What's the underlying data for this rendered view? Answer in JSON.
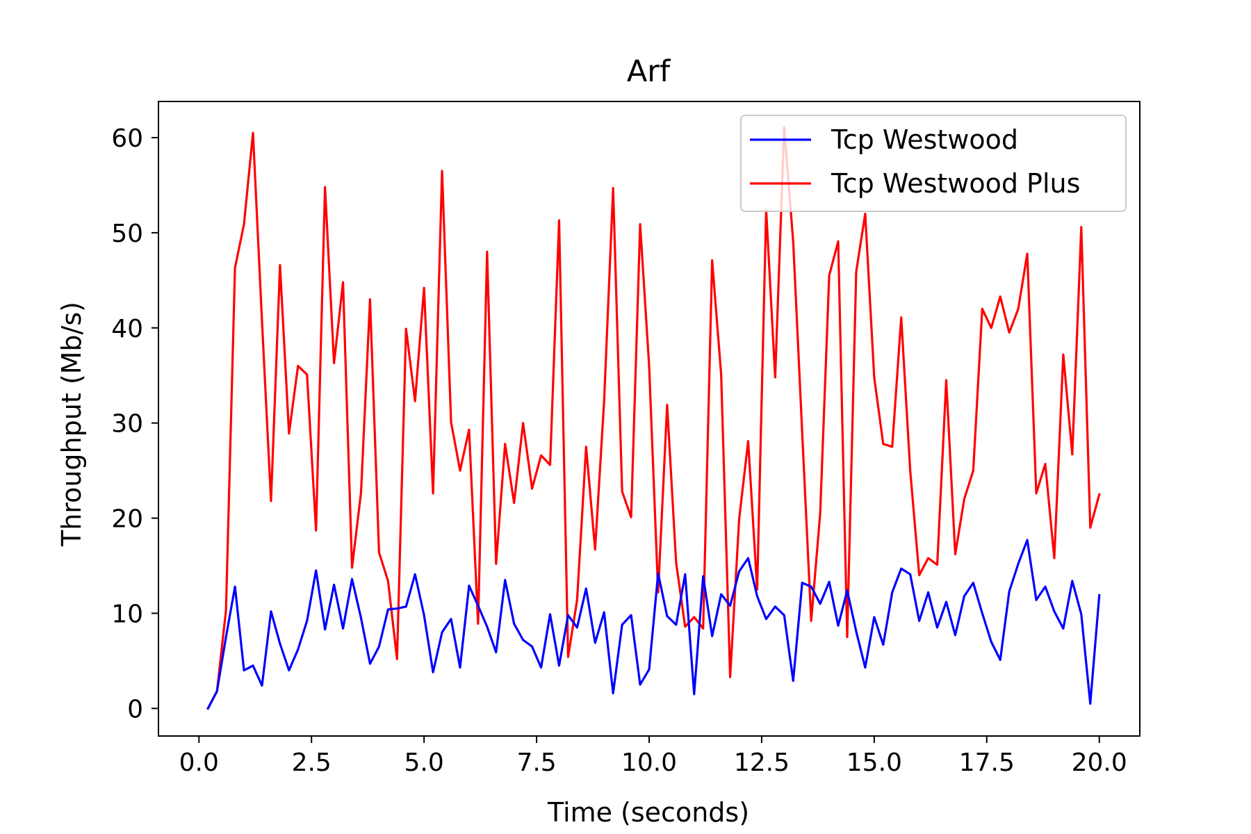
{
  "chart_data": {
    "type": "line",
    "title": "Arf",
    "xlabel": "Time (seconds)",
    "ylabel": "Throughput (Mb/s)",
    "xlim": [
      -0.9,
      20.9
    ],
    "ylim": [
      -2.9,
      63.8
    ],
    "xticks": [
      0.0,
      2.5,
      5.0,
      7.5,
      10.0,
      12.5,
      15.0,
      17.5,
      20.0
    ],
    "xtick_labels": [
      "0.0",
      "2.5",
      "5.0",
      "7.5",
      "10.0",
      "12.5",
      "15.0",
      "17.5",
      "20.0"
    ],
    "yticks": [
      0,
      10,
      20,
      30,
      40,
      50,
      60
    ],
    "ytick_labels": [
      "0",
      "10",
      "20",
      "30",
      "40",
      "50",
      "60"
    ],
    "grid": false,
    "legend_position": "top-right",
    "x": [
      0.2,
      0.4,
      0.6,
      0.8,
      1.0,
      1.2,
      1.4,
      1.6,
      1.8,
      2.0,
      2.2,
      2.4,
      2.6,
      2.8,
      3.0,
      3.2,
      3.4,
      3.6,
      3.8,
      4.0,
      4.2,
      4.4,
      4.6,
      4.8,
      5.0,
      5.2,
      5.4,
      5.6,
      5.8,
      6.0,
      6.2,
      6.4,
      6.6,
      6.8,
      7.0,
      7.2,
      7.4,
      7.6,
      7.8,
      8.0,
      8.2,
      8.4,
      8.6,
      8.8,
      9.0,
      9.2,
      9.4,
      9.6,
      9.8,
      10.0,
      10.2,
      10.4,
      10.6,
      10.8,
      11.0,
      11.2,
      11.4,
      11.6,
      11.8,
      12.0,
      12.2,
      12.4,
      12.6,
      12.8,
      13.0,
      13.2,
      13.4,
      13.6,
      13.8,
      14.0,
      14.2,
      14.4,
      14.6,
      14.8,
      15.0,
      15.2,
      15.4,
      15.6,
      15.8,
      16.0,
      16.2,
      16.4,
      16.6,
      16.8,
      17.0,
      17.2,
      17.4,
      17.6,
      17.8,
      18.0,
      18.2,
      18.4,
      18.6,
      18.8,
      19.0,
      19.2,
      19.4,
      19.6,
      19.8,
      20.0
    ],
    "series": [
      {
        "name": "Tcp Westwood",
        "color": "#0000ff",
        "values": [
          0.0,
          1.8,
          7.5,
          12.8,
          4.0,
          4.5,
          2.4,
          10.2,
          6.8,
          4.0,
          6.2,
          9.2,
          14.5,
          8.3,
          13.0,
          8.4,
          13.6,
          9.5,
          4.7,
          6.5,
          10.4,
          10.5,
          10.7,
          14.1,
          9.8,
          3.8,
          8.0,
          9.4,
          4.3,
          12.9,
          10.8,
          8.6,
          5.9,
          13.5,
          8.9,
          7.2,
          6.5,
          4.3,
          9.9,
          4.5,
          9.8,
          8.5,
          12.6,
          6.9,
          10.1,
          1.6,
          8.8,
          9.8,
          2.5,
          4.1,
          14.2,
          9.7,
          8.8,
          14.1,
          1.5,
          13.9,
          7.6,
          12.0,
          10.8,
          14.4,
          15.8,
          11.8,
          9.4,
          10.7,
          9.8,
          2.9,
          13.2,
          12.8,
          11.0,
          13.3,
          8.7,
          12.4,
          8.1,
          4.3,
          9.6,
          6.7,
          12.2,
          14.7,
          14.1,
          9.2,
          12.2,
          8.5,
          11.2,
          7.7,
          11.8,
          13.2,
          10.0,
          7.0,
          5.1,
          12.3,
          15.2,
          17.7,
          11.4,
          12.8,
          10.2,
          8.4,
          13.4,
          9.9,
          0.5,
          11.9
        ]
      },
      {
        "name": "Tcp Westwood Plus",
        "color": "#ff0000",
        "values": [
          0.0,
          1.8,
          10.3,
          46.3,
          50.9,
          60.5,
          40.7,
          21.8,
          46.6,
          28.9,
          36.0,
          35.1,
          18.7,
          54.8,
          36.3,
          44.8,
          14.8,
          22.7,
          43.0,
          16.4,
          13.4,
          5.2,
          39.9,
          32.3,
          44.2,
          22.6,
          56.5,
          30.1,
          25.0,
          29.3,
          8.9,
          48.0,
          15.2,
          27.8,
          21.6,
          30.0,
          23.1,
          26.6,
          25.6,
          51.3,
          5.4,
          11.4,
          27.5,
          16.7,
          32.3,
          54.7,
          22.8,
          20.1,
          50.9,
          36.0,
          12.2,
          31.9,
          15.3,
          8.6,
          9.6,
          8.4,
          47.1,
          35.1,
          3.3,
          19.9,
          28.1,
          12.5,
          52.4,
          34.8,
          61.1,
          49.1,
          29.0,
          9.2,
          20.5,
          45.5,
          49.1,
          7.5,
          45.9,
          52.0,
          34.8,
          27.8,
          27.5,
          41.1,
          25.0,
          14.0,
          15.8,
          15.1,
          34.5,
          16.2,
          22.0,
          25.0,
          42.0,
          40.0,
          43.3,
          39.5,
          42.0,
          47.8,
          22.6,
          25.7,
          15.8,
          37.2,
          26.7,
          50.6,
          19.0,
          22.5
        ]
      }
    ]
  }
}
